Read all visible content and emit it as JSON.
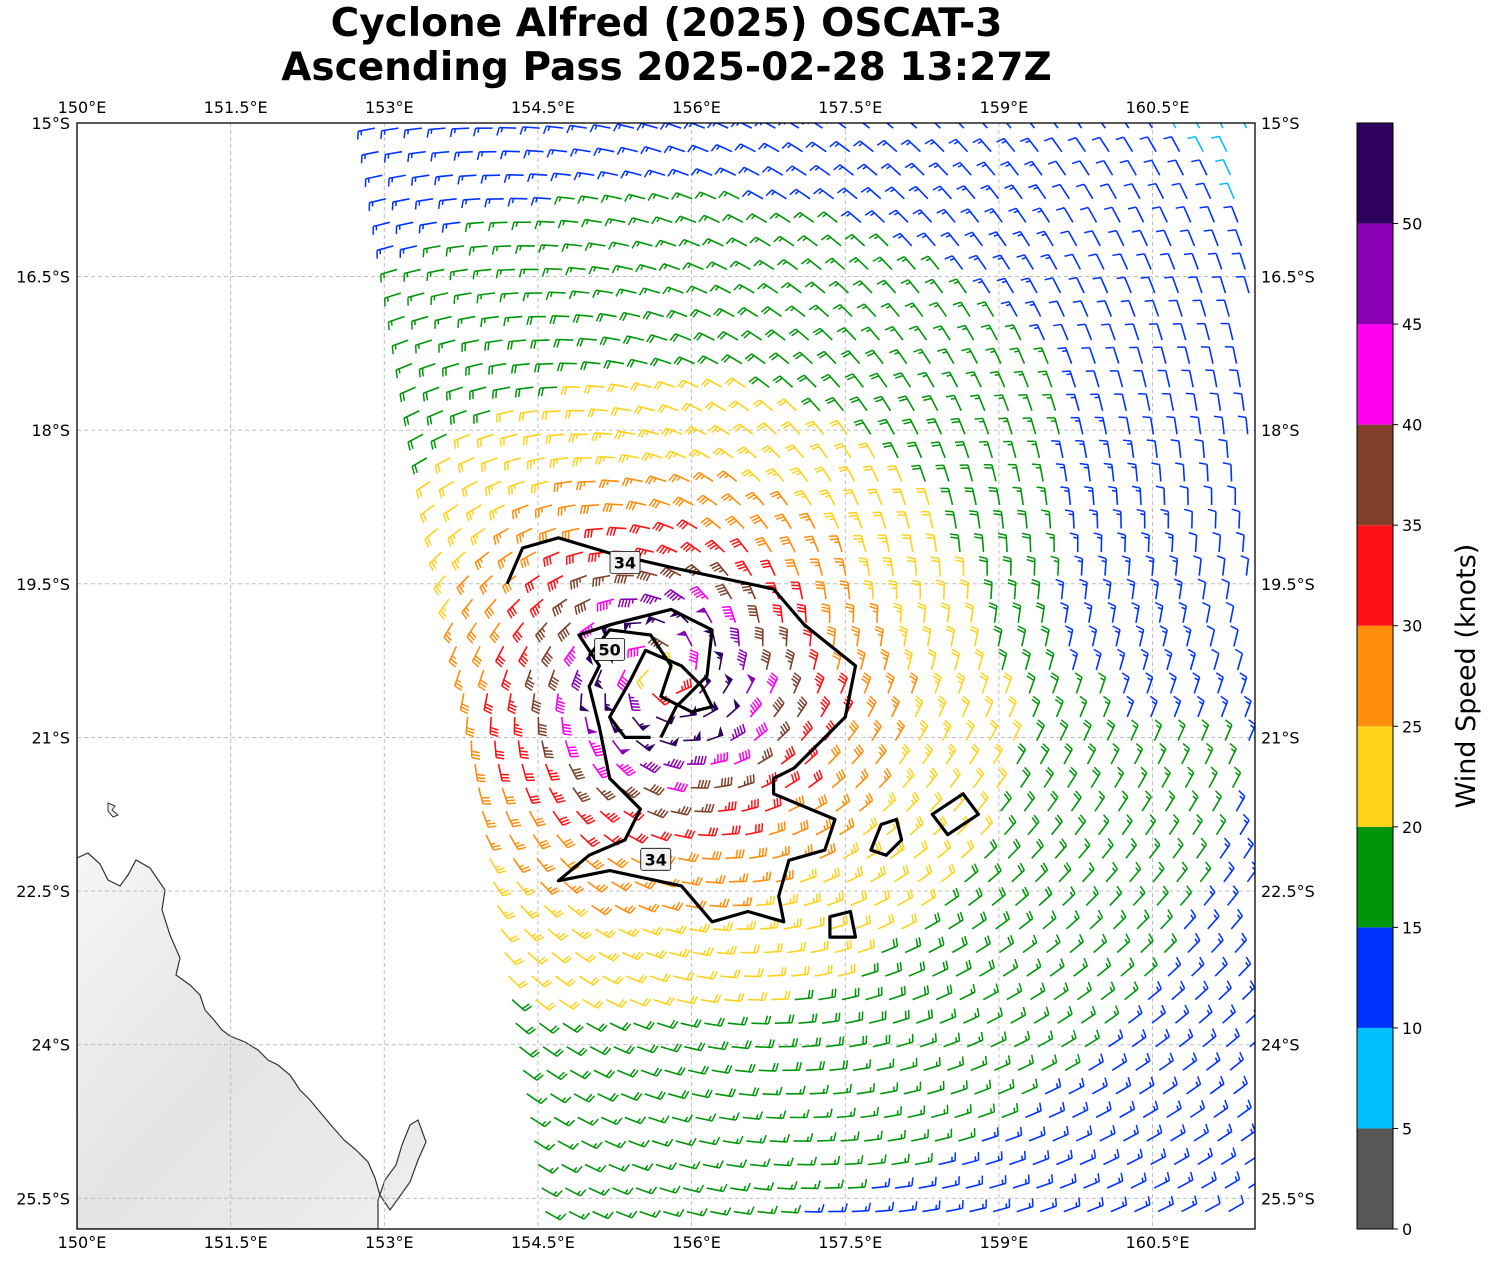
{
  "title": {
    "line1": "Cyclone Alfred (2025) OSCAT-3",
    "line2": "Ascending Pass 2025-02-28 13:27Z"
  },
  "map": {
    "lon_range": [
      150.0,
      161.5
    ],
    "lat_range": [
      -25.8,
      -15.0
    ],
    "lon_ticks": [
      {
        "v": 150.0,
        "label": "150°E"
      },
      {
        "v": 151.5,
        "label": "151.5°E"
      },
      {
        "v": 153.0,
        "label": "153°E"
      },
      {
        "v": 154.5,
        "label": "154.5°E"
      },
      {
        "v": 156.0,
        "label": "156°E"
      },
      {
        "v": 157.5,
        "label": "157.5°E"
      },
      {
        "v": 159.0,
        "label": "159°E"
      },
      {
        "v": 160.5,
        "label": "160.5°E"
      }
    ],
    "lat_ticks": [
      {
        "v": -15.0,
        "label": "15°S"
      },
      {
        "v": -16.5,
        "label": "16.5°S"
      },
      {
        "v": -18.0,
        "label": "18°S"
      },
      {
        "v": -19.5,
        "label": "19.5°S"
      },
      {
        "v": -21.0,
        "label": "21°S"
      },
      {
        "v": -22.5,
        "label": "22.5°S"
      },
      {
        "v": -24.0,
        "label": "24°S"
      },
      {
        "v": -25.5,
        "label": "25.5°S"
      }
    ],
    "gridlines": true,
    "storm_center": {
      "lon": 155.7,
      "lat": -20.4
    },
    "contours": [
      {
        "label": "34",
        "units": "knots",
        "points": [
          [
            154.2,
            -19.5
          ],
          [
            154.35,
            -19.15
          ],
          [
            154.7,
            -19.05
          ],
          [
            155.2,
            -19.2
          ],
          [
            155.85,
            -19.35
          ],
          [
            156.8,
            -19.55
          ],
          [
            157.1,
            -19.9
          ],
          [
            157.6,
            -20.3
          ],
          [
            157.5,
            -20.8
          ],
          [
            157.2,
            -21.1
          ],
          [
            157.0,
            -21.3
          ],
          [
            156.8,
            -21.4
          ],
          [
            156.8,
            -21.55
          ],
          [
            157.4,
            -21.8
          ],
          [
            157.3,
            -22.1
          ],
          [
            156.95,
            -22.2
          ],
          [
            156.85,
            -22.55
          ],
          [
            156.9,
            -22.8
          ],
          [
            156.55,
            -22.7
          ],
          [
            156.2,
            -22.8
          ],
          [
            155.9,
            -22.45
          ],
          [
            155.2,
            -22.3
          ],
          [
            154.7,
            -22.4
          ],
          [
            155.0,
            -22.15
          ],
          [
            155.35,
            -22.0
          ],
          [
            155.5,
            -21.7
          ],
          [
            155.2,
            -21.4
          ],
          [
            155.1,
            -20.9
          ],
          [
            155.0,
            -20.5
          ],
          [
            155.1,
            -20.3
          ],
          [
            154.9,
            -20.0
          ],
          [
            155.2,
            -19.9
          ],
          [
            155.8,
            -19.75
          ],
          [
            156.2,
            -19.95
          ],
          [
            156.15,
            -20.4
          ],
          [
            155.85,
            -20.7
          ],
          [
            155.7,
            -21.0
          ]
        ],
        "closed": false
      },
      {
        "label": "50",
        "units": "knots",
        "points": [
          [
            155.0,
            -20.2
          ],
          [
            155.2,
            -19.95
          ],
          [
            155.6,
            -20.0
          ],
          [
            155.8,
            -20.3
          ],
          [
            155.7,
            -20.6
          ],
          [
            156.0,
            -20.75
          ],
          [
            156.2,
            -20.7
          ],
          [
            156.1,
            -20.5
          ],
          [
            155.9,
            -20.3
          ],
          [
            155.55,
            -20.15
          ],
          [
            155.4,
            -20.45
          ],
          [
            155.2,
            -20.8
          ],
          [
            155.35,
            -21.0
          ],
          [
            155.6,
            -21.0
          ]
        ],
        "closed": false
      },
      {
        "label": "",
        "units": "knots",
        "points": [
          [
            157.85,
            -21.85
          ],
          [
            158.0,
            -21.8
          ],
          [
            158.05,
            -22.0
          ],
          [
            157.9,
            -22.15
          ],
          [
            157.75,
            -22.1
          ]
        ],
        "closed": true
      },
      {
        "label": "",
        "units": "knots",
        "points": [
          [
            158.35,
            -21.75
          ],
          [
            158.65,
            -21.55
          ],
          [
            158.8,
            -21.75
          ],
          [
            158.5,
            -21.95
          ]
        ],
        "closed": true
      },
      {
        "label": "",
        "units": "knots",
        "points": [
          [
            157.35,
            -22.75
          ],
          [
            157.55,
            -22.7
          ],
          [
            157.6,
            -22.95
          ],
          [
            157.35,
            -22.95
          ]
        ],
        "closed": true
      }
    ],
    "contour_labels": [
      {
        "text": "34",
        "lon": 155.35,
        "lat": -19.3
      },
      {
        "text": "50",
        "lon": 155.2,
        "lat": -20.15
      },
      {
        "text": "34",
        "lon": 155.65,
        "lat": -22.2
      }
    ],
    "land_label": "",
    "wind_field_description_fields": {
      "swath_west_lon_top": 152.9,
      "swath_west_lon_bottom": 154.6
    }
  },
  "colorbar": {
    "label": "Wind Speed (knots)",
    "tick_labels": [
      "0",
      "5",
      "10",
      "15",
      "20",
      "25",
      "30",
      "35",
      "40",
      "45",
      "50"
    ],
    "bins": [
      {
        "min": 0,
        "max": 5,
        "color": "#575757"
      },
      {
        "min": 5,
        "max": 10,
        "color": "#00bfff"
      },
      {
        "min": 10,
        "max": 15,
        "color": "#0033ff"
      },
      {
        "min": 15,
        "max": 20,
        "color": "#00960a"
      },
      {
        "min": 20,
        "max": 25,
        "color": "#ffd21a"
      },
      {
        "min": 25,
        "max": 30,
        "color": "#ff8c0a"
      },
      {
        "min": 30,
        "max": 35,
        "color": "#ff1014"
      },
      {
        "min": 35,
        "max": 40,
        "color": "#7f3f28"
      },
      {
        "min": 40,
        "max": 45,
        "color": "#ff00f0"
      },
      {
        "min": 45,
        "max": 50,
        "color": "#8a00b4"
      },
      {
        "min": 50,
        "max": 55,
        "color": "#30005e"
      }
    ]
  }
}
